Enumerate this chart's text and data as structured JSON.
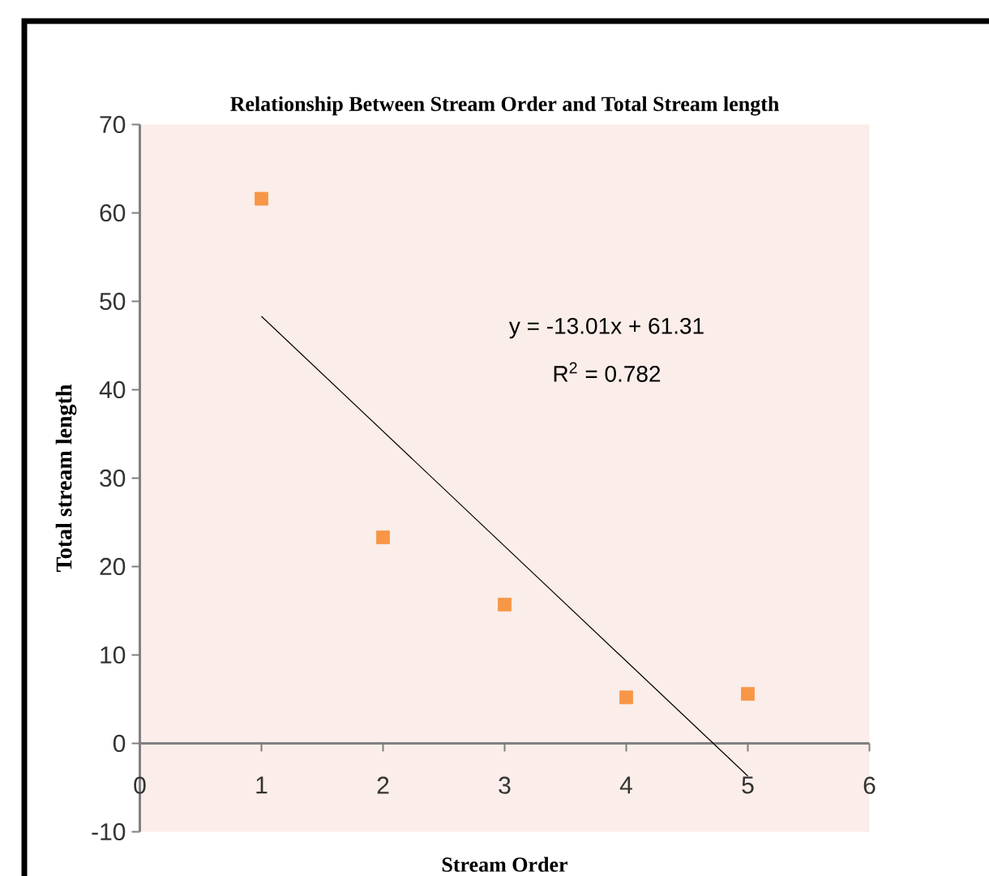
{
  "chart_data": {
    "type": "scatter",
    "title": "Relationship Between Stream Order  and Total Stream length",
    "xlabel": "Stream Order",
    "ylabel": "Total stream length",
    "xlim": [
      0,
      6
    ],
    "ylim": [
      -10,
      70
    ],
    "xticks": [
      0,
      1,
      2,
      3,
      4,
      5,
      6
    ],
    "yticks": [
      -10,
      0,
      10,
      20,
      30,
      40,
      50,
      60,
      70
    ],
    "marker": "square",
    "annotations": [
      "y = -13.01x + 61.31",
      "R$^{2}$ = 0.782"
    ],
    "series": [
      {
        "color": "#f79646",
        "x": [
          1,
          2,
          3,
          4,
          5
        ],
        "values": [
          61.6,
          23.3,
          15.7,
          5.2,
          5.6
        ]
      },
      {
        "type": "line",
        "color": "#000000",
        "marker": "none",
        "x": [
          1,
          5
        ],
        "values": [
          48.3,
          -3.7
        ]
      }
    ]
  }
}
